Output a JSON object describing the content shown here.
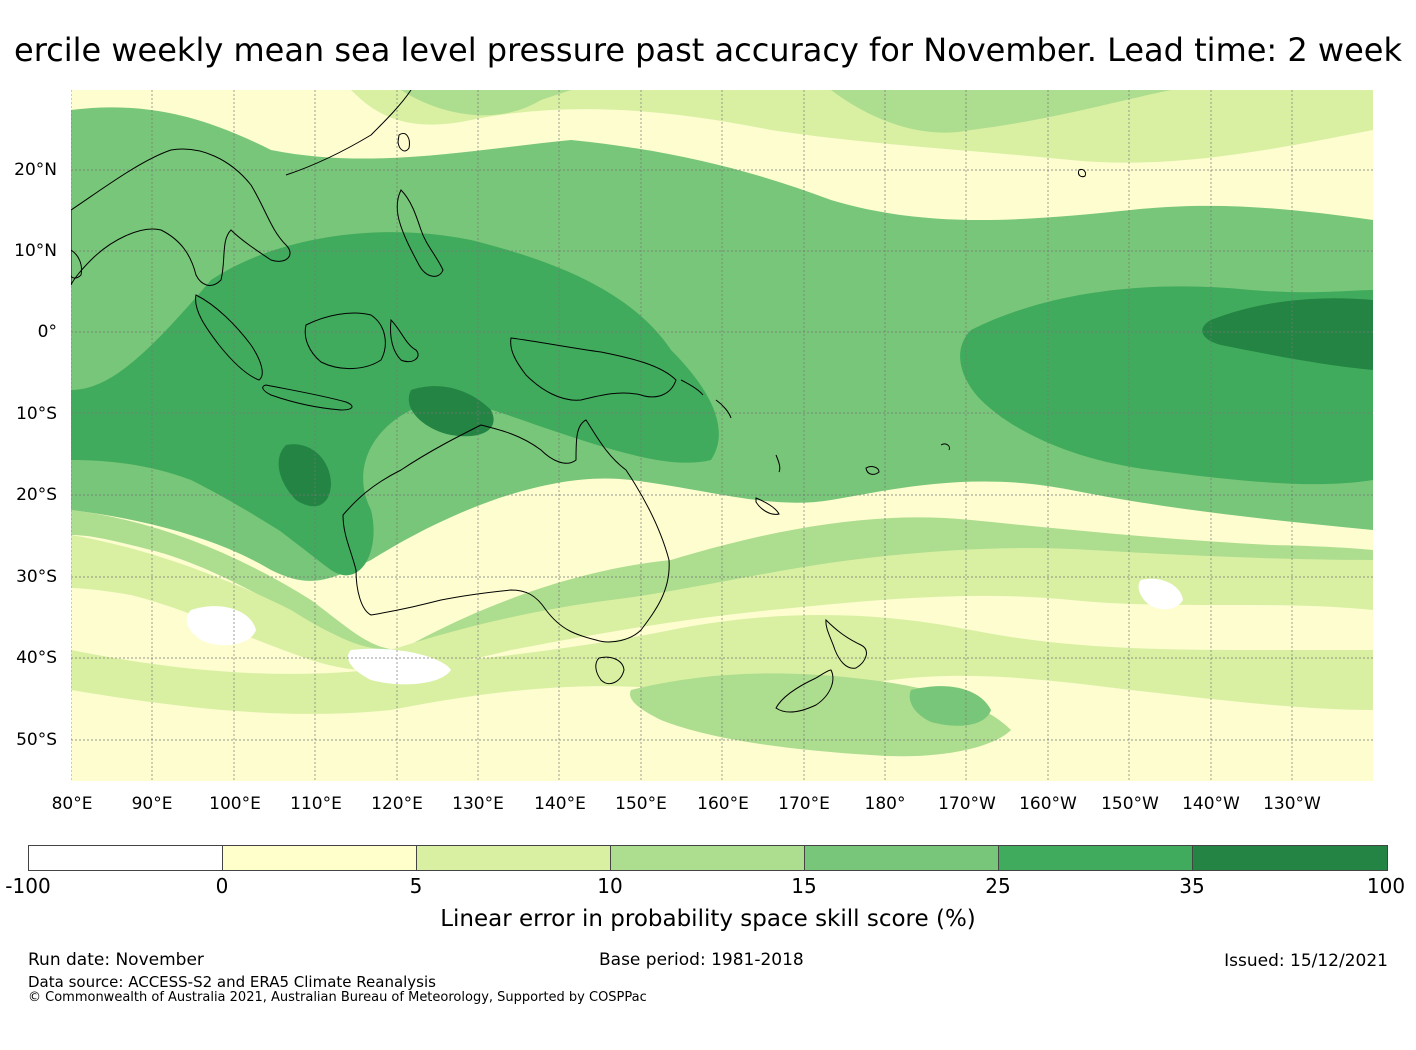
{
  "title": "ercile weekly mean sea level pressure past accuracy for November. Lead time: 2 week",
  "map": {
    "latitude_labels": [
      "20°N",
      "10°N",
      "0°",
      "10°S",
      "20°S",
      "30°S",
      "40°S",
      "50°S"
    ],
    "longitude_labels": [
      "80°E",
      "90°E",
      "100°E",
      "110°E",
      "120°E",
      "130°E",
      "140°E",
      "150°E",
      "160°E",
      "170°E",
      "180°",
      "170°W",
      "160°W",
      "150°W",
      "140°W",
      "130°W"
    ]
  },
  "colorbar": {
    "colors": [
      "#ffffff",
      "#ffffcc",
      "#d9f0a3",
      "#addd8e",
      "#78c679",
      "#41ab5d",
      "#238443"
    ],
    "ticks": [
      "-100",
      "0",
      "5",
      "10",
      "15",
      "25",
      "35",
      "100"
    ],
    "label": "Linear error in probability space skill score (%)"
  },
  "footer": {
    "run_date": "Run date: November",
    "base_period": "Base period: 1981-2018",
    "issued": "Issued: 15/12/2021",
    "data_source": "Data source: ACCESS-S2 and ERA5 Climate Reanalysis",
    "copyright": "© Commonwealth of Australia 2021, Australian Bureau of Meteorology, Supported by COSPPac"
  }
}
